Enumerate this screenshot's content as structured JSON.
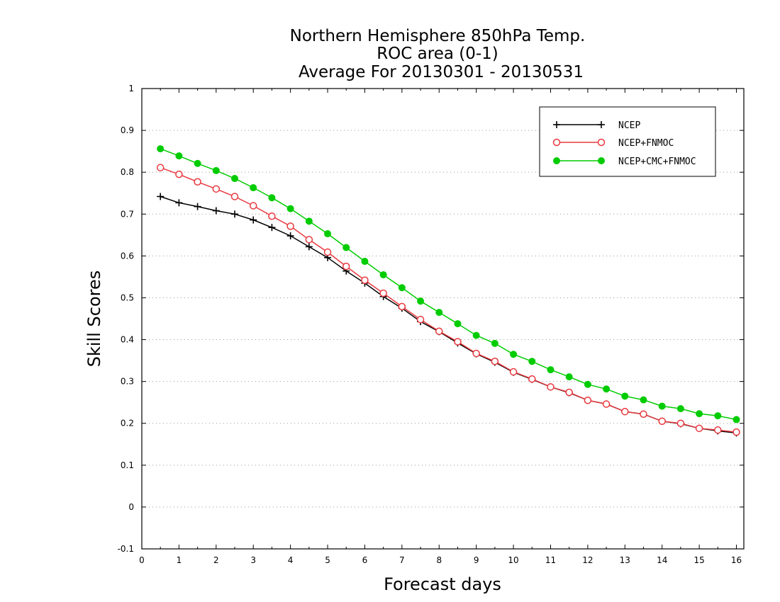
{
  "chart_data": {
    "type": "line",
    "title": [
      "Northern Hemisphere 850hPa Temp.",
      "ROC area (0-1)",
      "Average For 20130301 - 20130531"
    ],
    "xlabel": "Forecast days",
    "ylabel": "Skill Scores",
    "xlim": [
      0,
      16.2
    ],
    "ylim": [
      -0.1,
      1
    ],
    "xticks": [
      "0",
      "1",
      "2",
      "3",
      "4",
      "5",
      "6",
      "7",
      "8",
      "9",
      "10",
      "11",
      "12",
      "13",
      "14",
      "15",
      "16"
    ],
    "yticks": [
      "-0.1",
      "0",
      "0.1",
      "0.2",
      "0.3",
      "0.4",
      "0.5",
      "0.6",
      "0.7",
      "0.8",
      "0.9",
      "1"
    ],
    "grid": true,
    "legend_position": "top-right",
    "x": [
      0.5,
      1,
      1.5,
      2,
      2.5,
      3,
      3.5,
      4,
      4.5,
      5,
      5.5,
      6,
      6.5,
      7,
      7.5,
      8,
      8.5,
      9,
      9.5,
      10,
      10.5,
      11,
      11.5,
      12,
      12.5,
      13,
      13.5,
      14,
      14.5,
      15,
      15.5,
      16
    ],
    "series": [
      {
        "name": "NCEP",
        "color": "#000000",
        "marker": "plus",
        "values": [
          0.742,
          0.727,
          0.718,
          0.708,
          0.7,
          0.686,
          0.668,
          0.648,
          0.622,
          0.596,
          0.564,
          0.535,
          0.503,
          0.475,
          0.443,
          0.419,
          0.392,
          0.366,
          0.346,
          0.322,
          0.305,
          0.287,
          0.273,
          0.255,
          0.246,
          0.228,
          0.222,
          0.205,
          0.199,
          0.188,
          0.182,
          0.177
        ]
      },
      {
        "name": "NCEP+FNMOC",
        "color": "#e8393f",
        "marker": "circle-open",
        "values": [
          0.811,
          0.795,
          0.777,
          0.76,
          0.742,
          0.72,
          0.695,
          0.671,
          0.639,
          0.609,
          0.575,
          0.542,
          0.511,
          0.479,
          0.448,
          0.42,
          0.395,
          0.367,
          0.348,
          0.323,
          0.306,
          0.287,
          0.274,
          0.255,
          0.246,
          0.228,
          0.222,
          0.205,
          0.2,
          0.188,
          0.184,
          0.179
        ]
      },
      {
        "name": "NCEP+CMC+FNMOC",
        "color": "#00cc00",
        "marker": "circle-filled",
        "values": [
          0.856,
          0.839,
          0.821,
          0.804,
          0.785,
          0.763,
          0.739,
          0.713,
          0.683,
          0.653,
          0.62,
          0.587,
          0.555,
          0.524,
          0.492,
          0.465,
          0.438,
          0.41,
          0.391,
          0.365,
          0.348,
          0.328,
          0.311,
          0.293,
          0.282,
          0.265,
          0.256,
          0.241,
          0.235,
          0.223,
          0.218,
          0.209
        ]
      }
    ]
  }
}
